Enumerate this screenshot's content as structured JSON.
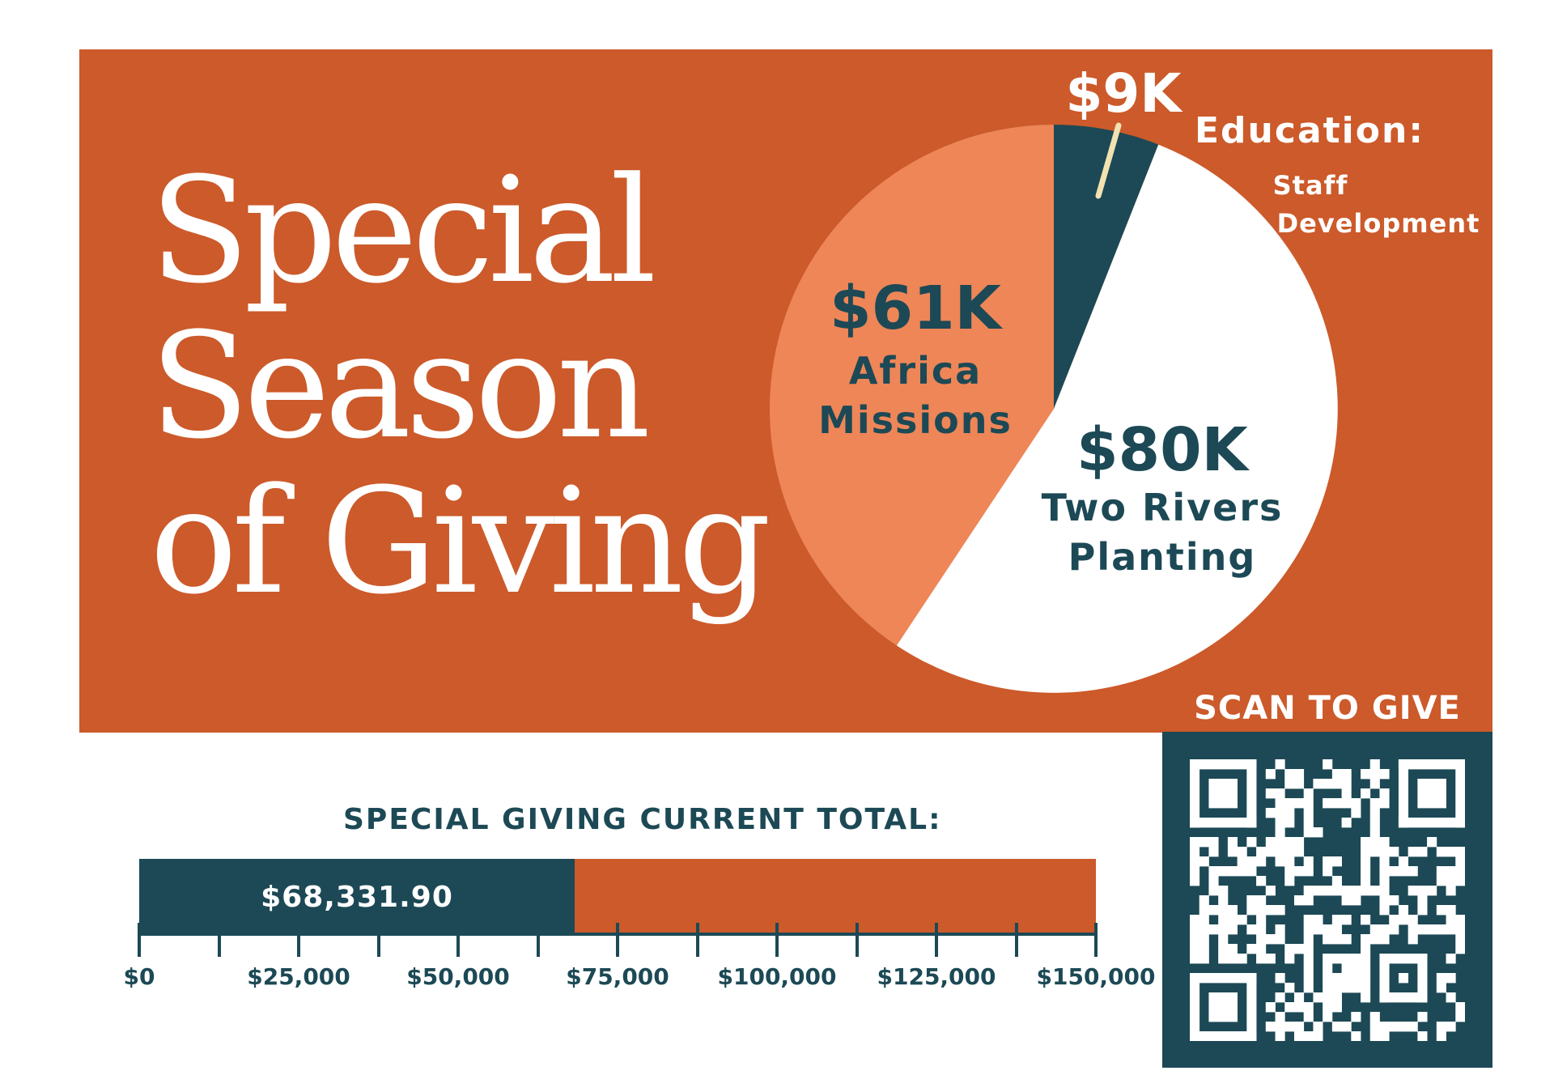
{
  "title": {
    "line1": "Special",
    "line2": "Season",
    "line3": "of Giving"
  },
  "colors": {
    "banner": "#cc5a2a",
    "navy": "#1c4955",
    "salmon": "#ee8658",
    "white": "#ffffff",
    "leader": "#f2e2b2"
  },
  "chart_data": [
    {
      "type": "pie",
      "slices": [
        {
          "category": "Education:",
          "sublabel": "Staff Development",
          "value_label": "$9K",
          "value": 9,
          "color": "#1c4955"
        },
        {
          "category": "Two Rivers Planting",
          "value_label": "$80K",
          "value": 80,
          "color": "#ffffff"
        },
        {
          "category": "Africa Missions",
          "value_label": "$61K",
          "value": 61,
          "color": "#ee8658"
        }
      ]
    },
    {
      "type": "bar",
      "title": "SPECIAL GIVING CURRENT TOTAL:",
      "value": 68331.9,
      "value_label": "$68,331.90",
      "xlim": [
        0,
        150000
      ],
      "tick_labels": [
        "$0",
        "$25,000",
        "$50,000",
        "$75,000",
        "$100,000",
        "$125,000",
        "$150,000"
      ],
      "minor_ticks": 12
    }
  ],
  "qr": {
    "label": "SCAN TO GIVE",
    "icon": "qr-code-icon"
  }
}
